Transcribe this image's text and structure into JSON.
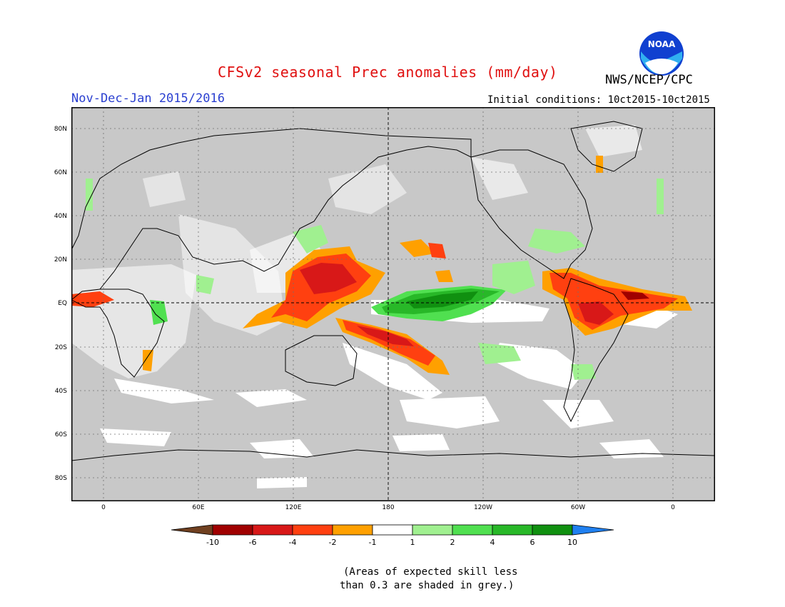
{
  "header": {
    "title": "CFSv2 seasonal Prec anomalies (mm/day)",
    "agency": "NWS/NCEP/CPC",
    "period": "Nov-Dec-Jan 2015/2016",
    "initial_conditions": "Initial conditions: 10ct2015-10ct2015",
    "logo_text": "NOAA"
  },
  "map": {
    "lat_labels": [
      "80N",
      "60N",
      "40N",
      "20N",
      "EQ",
      "20S",
      "40S",
      "60S",
      "80S"
    ],
    "lon_labels": [
      "0",
      "60E",
      "120E",
      "180",
      "120W",
      "60W",
      "0"
    ],
    "background_color": "#c8c8c8"
  },
  "colorbar": {
    "labels": [
      "-10",
      "-6",
      "-4",
      "-2",
      "-1",
      "1",
      "2",
      "4",
      "6",
      "10"
    ],
    "colors": [
      "#704020",
      "#a00000",
      "#d81818",
      "#ff4010",
      "#ffa000",
      "#ffffff",
      "#a0f090",
      "#50e050",
      "#28b828",
      "#109010",
      "#2080f0"
    ]
  },
  "note": {
    "line1": "(Areas of expected skill less",
    "line2": "than 0.3 are shaded in grey.)"
  }
}
